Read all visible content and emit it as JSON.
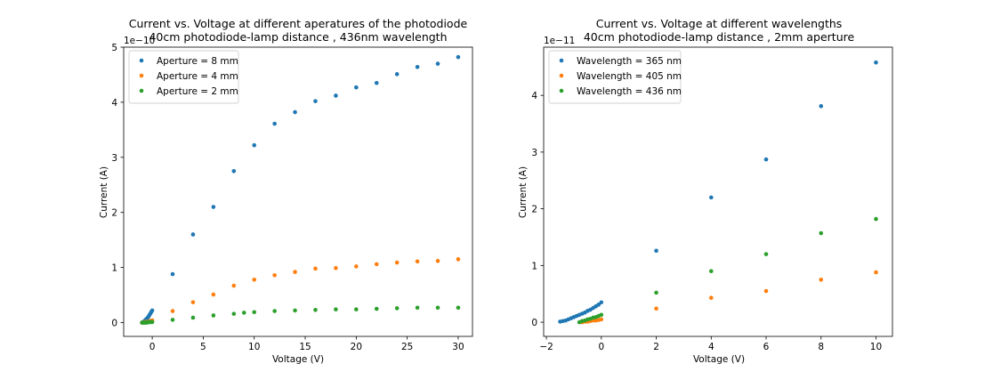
{
  "chart_data": [
    {
      "type": "scatter",
      "title": "Current vs. Voltage at different aperatures of the photodiode",
      "subtitle": "40cm photodiode-lamp distance , 436nm wavelength",
      "xlabel": "Voltage (V)",
      "ylabel": "Current (A)",
      "y_offset_label": "1e−10",
      "xlim": [
        -2.8,
        31.4
      ],
      "ylim": [
        -0.25,
        5.0
      ],
      "x_ticks": [
        0,
        5,
        10,
        15,
        20,
        25,
        30
      ],
      "x_tick_labels": [
        "0",
        "5",
        "10",
        "15",
        "20",
        "25",
        "30"
      ],
      "y_ticks": [
        0,
        1,
        2,
        3,
        4,
        5
      ],
      "y_tick_labels": [
        "0",
        "1",
        "2",
        "3",
        "4",
        "5"
      ],
      "legend_position": "top-left",
      "series": [
        {
          "name": "Aperture = 8 mm",
          "color": "#1f77b4",
          "x": [
            -1.0,
            -0.9,
            -0.8,
            -0.7,
            -0.6,
            -0.5,
            -0.4,
            -0.3,
            -0.2,
            -0.1,
            0,
            2,
            4,
            6,
            8,
            10,
            12,
            14,
            16,
            18,
            20,
            22,
            24,
            26,
            28,
            30
          ],
          "y": [
            0.0,
            0.01,
            0.02,
            0.04,
            0.06,
            0.08,
            0.1,
            0.13,
            0.16,
            0.19,
            0.22,
            0.88,
            1.6,
            2.1,
            2.75,
            3.22,
            3.61,
            3.82,
            4.02,
            4.12,
            4.27,
            4.35,
            4.51,
            4.64,
            4.7,
            4.82
          ]
        },
        {
          "name": "Aperture = 4 mm",
          "color": "#ff7f0e",
          "x": [
            -1.0,
            -0.9,
            -0.8,
            -0.7,
            -0.6,
            -0.5,
            -0.4,
            -0.3,
            -0.2,
            -0.1,
            0,
            2,
            4,
            6,
            8,
            10,
            12,
            14,
            16,
            18,
            20,
            22,
            24,
            26,
            28,
            30
          ],
          "y": [
            0.0,
            0.0,
            0.0,
            0.01,
            0.01,
            0.01,
            0.02,
            0.02,
            0.03,
            0.03,
            0.04,
            0.21,
            0.37,
            0.51,
            0.67,
            0.78,
            0.86,
            0.92,
            0.98,
            0.99,
            1.02,
            1.06,
            1.09,
            1.11,
            1.12,
            1.15
          ]
        },
        {
          "name": "Aperture = 2 mm",
          "color": "#2ca02c",
          "x": [
            -1.0,
            -0.9,
            -0.8,
            -0.7,
            -0.6,
            -0.5,
            -0.4,
            -0.3,
            -0.2,
            -0.1,
            0,
            2,
            4,
            6,
            8,
            9,
            10,
            12,
            14,
            16,
            18,
            20,
            22,
            24,
            26,
            28,
            30
          ],
          "y": [
            0.0,
            0.0,
            0.0,
            0.0,
            0.0,
            0.0,
            0.01,
            0.01,
            0.01,
            0.01,
            0.01,
            0.05,
            0.09,
            0.13,
            0.16,
            0.18,
            0.19,
            0.21,
            0.22,
            0.23,
            0.24,
            0.24,
            0.25,
            0.26,
            0.27,
            0.27,
            0.27
          ]
        }
      ]
    },
    {
      "type": "scatter",
      "title": "Current vs. Voltage at different wavelengths",
      "subtitle": "40cm photodiode-lamp distance , 2mm aperture",
      "xlabel": "Voltage (V)",
      "ylabel": "Current (A)",
      "y_offset_label": "1e−11",
      "xlim": [
        -2.1,
        10.6
      ],
      "ylim": [
        -0.25,
        4.85
      ],
      "x_ticks": [
        -2,
        0,
        2,
        4,
        6,
        8,
        10
      ],
      "x_tick_labels": [
        "−2",
        "0",
        "2",
        "4",
        "6",
        "8",
        "10"
      ],
      "y_ticks": [
        0,
        1,
        2,
        3,
        4
      ],
      "y_tick_labels": [
        "0",
        "1",
        "2",
        "3",
        "4"
      ],
      "legend_position": "top-left",
      "series": [
        {
          "name": "Wavelength = 365 nm",
          "color": "#1f77b4",
          "x": [
            -1.5,
            -1.4,
            -1.3,
            -1.2,
            -1.1,
            -1.0,
            -0.9,
            -0.8,
            -0.7,
            -0.6,
            -0.5,
            -0.4,
            -0.3,
            -0.2,
            -0.1,
            0,
            2,
            4,
            6,
            8,
            10
          ],
          "y": [
            0.01,
            0.02,
            0.03,
            0.05,
            0.07,
            0.09,
            0.11,
            0.13,
            0.15,
            0.17,
            0.2,
            0.22,
            0.25,
            0.28,
            0.31,
            0.35,
            1.26,
            2.2,
            2.87,
            3.81,
            4.58
          ]
        },
        {
          "name": "Wavelength = 405 nm",
          "color": "#ff7f0e",
          "x": [
            -0.7,
            -0.6,
            -0.5,
            -0.4,
            -0.3,
            -0.2,
            -0.1,
            0,
            2,
            4,
            6,
            8,
            10
          ],
          "y": [
            0.0,
            0.01,
            0.01,
            0.02,
            0.03,
            0.03,
            0.04,
            0.05,
            0.24,
            0.43,
            0.55,
            0.75,
            0.88
          ]
        },
        {
          "name": "Wavelength = 436 nm",
          "color": "#2ca02c",
          "x": [
            -0.8,
            -0.7,
            -0.6,
            -0.5,
            -0.4,
            -0.3,
            -0.2,
            -0.1,
            0,
            2,
            4,
            6,
            8,
            10
          ],
          "y": [
            0.0,
            0.02,
            0.03,
            0.05,
            0.06,
            0.08,
            0.09,
            0.11,
            0.13,
            0.52,
            0.9,
            1.2,
            1.57,
            1.82
          ]
        }
      ]
    }
  ]
}
